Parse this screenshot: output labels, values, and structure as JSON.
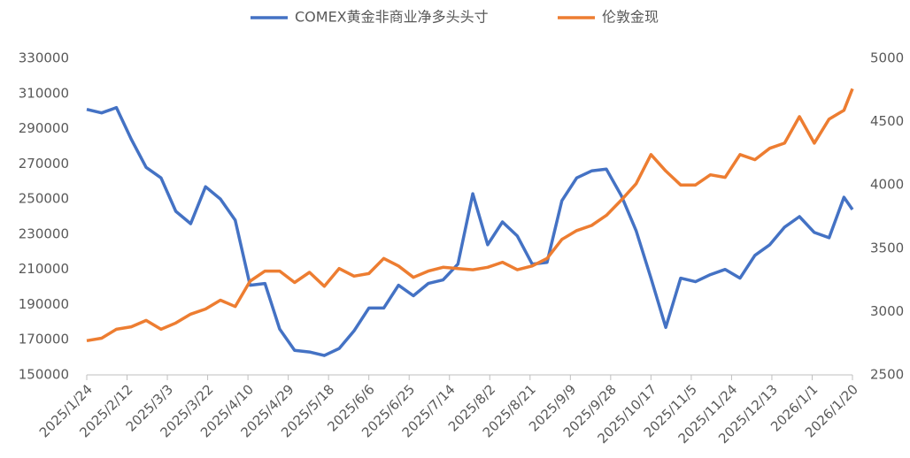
{
  "chart_data": {
    "type": "line",
    "x": [
      "2025/1/24",
      "2025/1/31",
      "2025/2/7",
      "2025/2/14",
      "2025/2/21",
      "2025/2/28",
      "2025/3/7",
      "2025/3/14",
      "2025/3/21",
      "2025/3/28",
      "2025/4/4",
      "2025/4/11",
      "2025/4/18",
      "2025/4/25",
      "2025/5/2",
      "2025/5/9",
      "2025/5/16",
      "2025/5/23",
      "2025/5/30",
      "2025/6/6",
      "2025/6/13",
      "2025/6/20",
      "2025/6/27",
      "2025/7/4",
      "2025/7/11",
      "2025/7/18",
      "2025/7/25",
      "2025/8/1",
      "2025/8/8",
      "2025/8/15",
      "2025/8/22",
      "2025/8/29",
      "2025/9/5",
      "2025/9/12",
      "2025/9/19",
      "2025/9/26",
      "2025/10/3",
      "2025/10/10",
      "2025/10/17",
      "2025/10/24",
      "2025/10/31",
      "2025/11/7",
      "2025/11/14",
      "2025/11/21",
      "2025/11/28",
      "2025/12/5",
      "2025/12/12",
      "2025/12/19",
      "2025/12/26",
      "2026/1/2",
      "2026/1/9",
      "2026/1/16",
      "2026/1/20"
    ],
    "series": [
      {
        "name": "COMEX黄金非商业净多头头寸",
        "color": "#4472c4",
        "axis": "y",
        "values": [
          301000,
          299000,
          302000,
          284000,
          268000,
          262000,
          243000,
          236000,
          257000,
          250000,
          238000,
          201000,
          202000,
          176000,
          164000,
          163000,
          161000,
          165000,
          175000,
          188000,
          188000,
          201000,
          195000,
          202000,
          204000,
          213000,
          253000,
          224000,
          237000,
          229000,
          213000,
          214000,
          249000,
          262000,
          266000,
          267000,
          252000,
          232000,
          205000,
          177000,
          205000,
          203000,
          207000,
          210000,
          205000,
          218000,
          224000,
          234000,
          240000,
          231000,
          228000,
          251000,
          244000
        ]
      },
      {
        "name": "伦敦金现",
        "color": "#ed7d31",
        "axis": "y2",
        "values": [
          2770,
          2790,
          2860,
          2880,
          2930,
          2860,
          2910,
          2980,
          3020,
          3090,
          3040,
          3240,
          3320,
          3320,
          3230,
          3310,
          3200,
          3340,
          3280,
          3300,
          3420,
          3360,
          3270,
          3320,
          3350,
          3340,
          3330,
          3350,
          3390,
          3330,
          3360,
          3420,
          3570,
          3640,
          3680,
          3760,
          3880,
          4010,
          4240,
          4110,
          4000,
          4000,
          4080,
          4060,
          4240,
          4200,
          4290,
          4330,
          4540,
          4330,
          4520,
          4590,
          4760
        ]
      }
    ],
    "xlim": [
      "2025/1/24",
      "2026/1/20"
    ],
    "xticks": [
      "2025/1/24",
      "2025/2/12",
      "2025/3/3",
      "2025/3/22",
      "2025/4/10",
      "2025/4/29",
      "2025/5/18",
      "2025/6/6",
      "2025/6/25",
      "2025/7/14",
      "2025/8/2",
      "2025/8/21",
      "2025/9/9",
      "2025/9/28",
      "2025/10/17",
      "2025/11/5",
      "2025/11/24",
      "2025/12/13",
      "2026/1/1",
      "2026/1/20"
    ],
    "ylim": [
      150000,
      330000
    ],
    "yticks": [
      150000,
      170000,
      190000,
      210000,
      230000,
      250000,
      270000,
      290000,
      310000,
      330000
    ],
    "y2lim": [
      2500,
      5000
    ],
    "y2ticks": [
      2500,
      3000,
      3500,
      4000,
      4500,
      5000
    ],
    "legend": "top"
  }
}
